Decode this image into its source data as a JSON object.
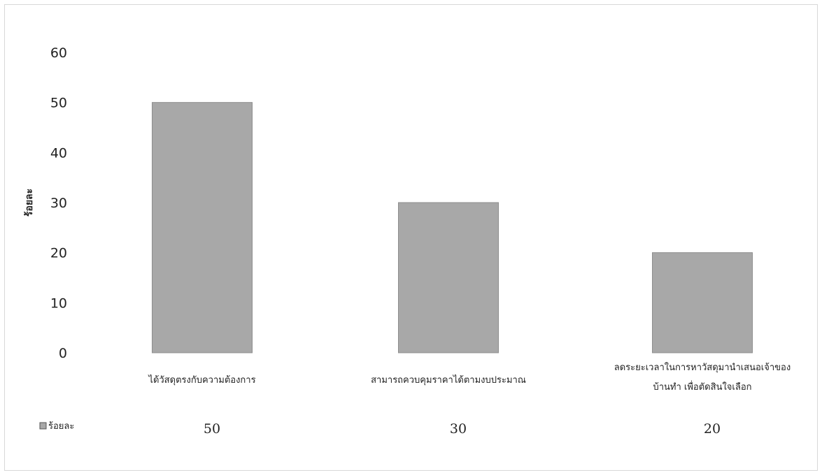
{
  "chart_data": {
    "type": "bar",
    "ylabel": "ร้อยละ",
    "ylim": [
      0,
      60
    ],
    "yticks": [
      0,
      10,
      20,
      30,
      40,
      50,
      60
    ],
    "grid": false,
    "legend_position": "left of data table",
    "categories": [
      [
        "ได้วัสดุตรงกับความต้องการ"
      ],
      [
        "สามารถควบคุมราคาได้ตามงบประมาณ"
      ],
      [
        "ลดระยะเวลาในการหาวัสดุมานำเสนอเจ้าของ",
        "บ้านทำ เพื่อตัดสินใจเลือก"
      ]
    ],
    "series": [
      {
        "name": "ร้อยละ",
        "values": [
          50,
          30,
          20
        ],
        "color": "#a8a8a8"
      }
    ]
  }
}
